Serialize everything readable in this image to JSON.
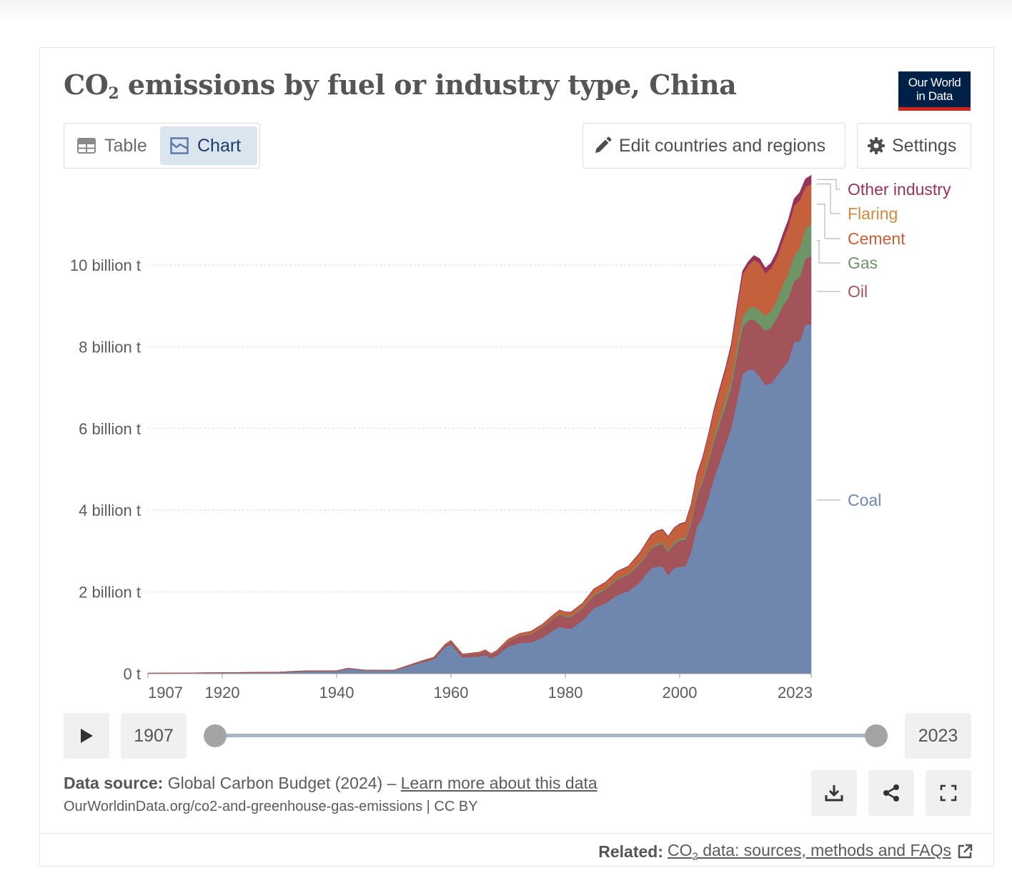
{
  "header": {
    "title_main": "CO",
    "title_sub": "2",
    "title_rest": " emissions by fuel or industry type, China",
    "logo_line1": "Our World",
    "logo_line2": "in Data"
  },
  "tabs": {
    "table_label": "Table",
    "chart_label": "Chart"
  },
  "controls": {
    "edit_label": "Edit countries and regions",
    "settings_label": "Settings"
  },
  "timeline": {
    "start_year": "1907",
    "end_year": "2023"
  },
  "footer": {
    "source_label": "Data source:",
    "source_text": " Global Carbon Budget (2024) – ",
    "learn_more": "Learn more about this data",
    "url_text": "OurWorldinData.org/co2-and-greenhouse-gas-emissions | CC BY",
    "related_label": "Related:",
    "related_link_a": "CO",
    "related_link_sub": "2",
    "related_link_b": " data: sources, methods and FAQs"
  },
  "colors": {
    "coal": "#6f86ae",
    "oil": "#a3545b",
    "gas": "#6e9565",
    "cement": "#c4603b",
    "flaring": "#d5883a",
    "other_industry": "#96335d"
  },
  "chart_data": {
    "type": "area",
    "stacked": true,
    "title": "CO2 emissions by fuel or industry type, China",
    "ylabel": "",
    "xlim": [
      1907,
      2023
    ],
    "ylim": [
      0,
      11.9
    ],
    "y_unit": "billion t",
    "y_ticks": [
      0,
      2,
      4,
      6,
      8,
      10
    ],
    "y_tick_labels": [
      "0 t",
      "2 billion t",
      "4 billion t",
      "6 billion t",
      "8 billion t",
      "10 billion t"
    ],
    "x_ticks": [
      1907,
      1920,
      1940,
      1960,
      1980,
      2000,
      2023
    ],
    "x_tick_labels": [
      "1907",
      "1920",
      "1940",
      "1960",
      "1980",
      "2000",
      "2023"
    ],
    "grid": true,
    "legend_position": "right",
    "x": [
      1907,
      1920,
      1930,
      1935,
      1940,
      1942,
      1945,
      1950,
      1955,
      1957,
      1959,
      1960,
      1962,
      1965,
      1966,
      1967,
      1968,
      1970,
      1972,
      1974,
      1976,
      1978,
      1979,
      1980,
      1981,
      1983,
      1985,
      1987,
      1989,
      1991,
      1993,
      1995,
      1996,
      1997,
      1998,
      1999,
      2000,
      2001,
      2002,
      2003,
      2004,
      2005,
      2006,
      2007,
      2008,
      2009,
      2010,
      2011,
      2012,
      2013,
      2014,
      2015,
      2016,
      2017,
      2018,
      2019,
      2020,
      2021,
      2022,
      2023
    ],
    "series": [
      {
        "name": "Coal",
        "values": [
          0.01,
          0.02,
          0.03,
          0.06,
          0.06,
          0.12,
          0.08,
          0.07,
          0.28,
          0.35,
          0.65,
          0.72,
          0.4,
          0.42,
          0.46,
          0.38,
          0.44,
          0.66,
          0.75,
          0.77,
          0.88,
          1.07,
          1.15,
          1.11,
          1.1,
          1.3,
          1.6,
          1.72,
          1.92,
          2.02,
          2.23,
          2.58,
          2.62,
          2.62,
          2.41,
          2.58,
          2.62,
          2.63,
          2.98,
          3.59,
          3.83,
          4.3,
          4.78,
          5.18,
          5.6,
          6.0,
          6.65,
          7.32,
          7.44,
          7.43,
          7.27,
          7.07,
          7.11,
          7.28,
          7.48,
          7.64,
          8.12,
          8.13,
          8.55,
          8.55
        ]
      },
      {
        "name": "Oil",
        "values": [
          0.003,
          0.005,
          0.008,
          0.01,
          0.01,
          0.01,
          0.005,
          0.01,
          0.03,
          0.04,
          0.05,
          0.06,
          0.06,
          0.08,
          0.09,
          0.08,
          0.09,
          0.13,
          0.17,
          0.2,
          0.25,
          0.29,
          0.3,
          0.29,
          0.29,
          0.29,
          0.32,
          0.34,
          0.38,
          0.4,
          0.45,
          0.48,
          0.52,
          0.56,
          0.58,
          0.59,
          0.64,
          0.65,
          0.69,
          0.76,
          0.86,
          0.87,
          0.92,
          0.95,
          0.95,
          1.0,
          1.13,
          1.16,
          1.21,
          1.24,
          1.27,
          1.32,
          1.36,
          1.42,
          1.5,
          1.56,
          1.48,
          1.57,
          1.61,
          1.66
        ]
      },
      {
        "name": "Gas",
        "values": [
          0,
          0,
          0,
          0,
          0,
          0,
          0,
          0,
          0,
          0,
          0.002,
          0.003,
          0.005,
          0.006,
          0.007,
          0.007,
          0.008,
          0.01,
          0.012,
          0.015,
          0.018,
          0.02,
          0.025,
          0.027,
          0.028,
          0.03,
          0.03,
          0.03,
          0.03,
          0.03,
          0.035,
          0.035,
          0.04,
          0.04,
          0.045,
          0.05,
          0.05,
          0.055,
          0.065,
          0.07,
          0.08,
          0.09,
          0.11,
          0.13,
          0.15,
          0.17,
          0.2,
          0.25,
          0.28,
          0.32,
          0.35,
          0.37,
          0.4,
          0.45,
          0.53,
          0.59,
          0.63,
          0.71,
          0.74,
          0.79
        ]
      },
      {
        "name": "Cement",
        "values": [
          0.0005,
          0.001,
          0.002,
          0.003,
          0.004,
          0.004,
          0.004,
          0.005,
          0.01,
          0.012,
          0.02,
          0.03,
          0.015,
          0.02,
          0.025,
          0.022,
          0.025,
          0.04,
          0.05,
          0.05,
          0.06,
          0.07,
          0.08,
          0.08,
          0.085,
          0.1,
          0.12,
          0.14,
          0.16,
          0.17,
          0.23,
          0.29,
          0.3,
          0.3,
          0.31,
          0.33,
          0.34,
          0.35,
          0.39,
          0.43,
          0.49,
          0.55,
          0.62,
          0.67,
          0.71,
          0.81,
          0.92,
          1.03,
          1.05,
          1.13,
          1.14,
          1.03,
          1.04,
          1.02,
          1.06,
          1.14,
          1.2,
          1.17,
          1.0,
          0.98
        ]
      },
      {
        "name": "Flaring",
        "values": [
          0,
          0,
          0,
          0,
          0,
          0,
          0,
          0,
          0,
          0,
          0,
          0.001,
          0.001,
          0.001,
          0.001,
          0.001,
          0.001,
          0.001,
          0.002,
          0.002,
          0.002,
          0.003,
          0.003,
          0.003,
          0.003,
          0.003,
          0.003,
          0.003,
          0.003,
          0.003,
          0.003,
          0.003,
          0.003,
          0.003,
          0.003,
          0.003,
          0.003,
          0.003,
          0.003,
          0.003,
          0.004,
          0.004,
          0.004,
          0.004,
          0.005,
          0.005,
          0.005,
          0.005,
          0.006,
          0.006,
          0.006,
          0.006,
          0.006,
          0.007,
          0.007,
          0.007,
          0.007,
          0.008,
          0.008,
          0.008
        ]
      },
      {
        "name": "Other industry",
        "values": [
          0,
          0,
          0,
          0,
          0,
          0,
          0,
          0,
          0,
          0,
          0,
          0,
          0,
          0.001,
          0.001,
          0.001,
          0.001,
          0.002,
          0.002,
          0.003,
          0.003,
          0.004,
          0.004,
          0.004,
          0.004,
          0.005,
          0.006,
          0.007,
          0.008,
          0.009,
          0.01,
          0.012,
          0.013,
          0.014,
          0.015,
          0.016,
          0.018,
          0.02,
          0.022,
          0.025,
          0.03,
          0.035,
          0.04,
          0.05,
          0.06,
          0.07,
          0.08,
          0.09,
          0.1,
          0.11,
          0.12,
          0.13,
          0.14,
          0.15,
          0.16,
          0.17,
          0.18,
          0.19,
          0.2,
          0.21
        ]
      }
    ],
    "legend": [
      "Other industry",
      "Flaring",
      "Cement",
      "Gas",
      "Oil",
      "Coal"
    ]
  }
}
